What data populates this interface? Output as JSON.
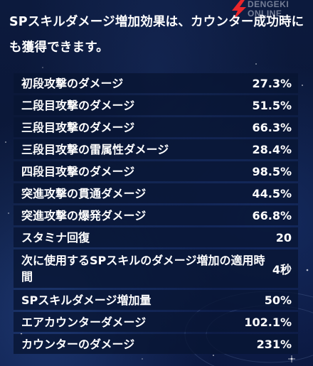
{
  "intro": {
    "text": "SPスキルダメージ増加効果は、カウンター成功時にも獲得できます。"
  },
  "logo": {
    "line1": "DENGEKI",
    "line2": "ONLINE",
    "accent": "#e8262b"
  },
  "stats": [
    {
      "label": "初段攻撃のダメージ",
      "value": "27.3%"
    },
    {
      "label": "二段目攻撃のダメージ",
      "value": "51.5%"
    },
    {
      "label": "三段目攻撃のダメージ",
      "value": "66.3%"
    },
    {
      "label": "三段目攻撃の雷属性ダメージ",
      "value": "28.4%"
    },
    {
      "label": "四段目攻撃のダメージ",
      "value": "98.5%"
    },
    {
      "label": "突進攻撃の貫通ダメージ",
      "value": "44.5%"
    },
    {
      "label": "突進攻撃の爆発ダメージ",
      "value": "66.8%"
    },
    {
      "label": "スタミナ回復",
      "value": "20"
    },
    {
      "label": "次に使用するSPスキルのダメージ増加の適用時間",
      "value": "4秒"
    },
    {
      "label": "SPスキルダメージ増加量",
      "value": "50%"
    },
    {
      "label": "エアカウンターダメージ",
      "value": "102.1%"
    },
    {
      "label": "カウンターのダメージ",
      "value": "231%"
    }
  ],
  "colors": {
    "background": "#0a1636",
    "row": "#08142f",
    "text": "#ffffff"
  }
}
